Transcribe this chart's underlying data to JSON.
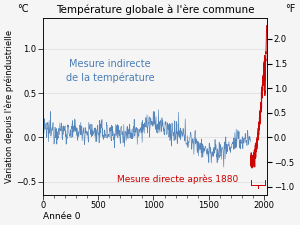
{
  "title": "Température globale à l'ère commune",
  "ylabel_left": "Variation depuis l'ère préindustrielle",
  "ylabel_left_unit": "°C",
  "ylabel_right_unit": "°F",
  "xlabel": "Année 0",
  "xlim": [
    0,
    2030
  ],
  "ylim_c": [
    -0.65,
    1.35
  ],
  "xticks": [
    0,
    500,
    1000,
    1500,
    2000
  ],
  "yticks_c": [
    -0.5,
    0,
    0.5,
    1.0
  ],
  "yticks_f": [
    -1.0,
    -0.5,
    0,
    0.5,
    1.0,
    1.5,
    2.0
  ],
  "indirect_label_line1": "Mesure indirecte",
  "indirect_label_line2": "de la température",
  "direct_label": "Mesure directe après 1880",
  "indirect_color": "#4a7db5",
  "direct_color": "#cc0000",
  "background_color": "#f5f5f5",
  "title_fontsize": 7.5,
  "ylabel_fontsize": 6.0,
  "tick_fontsize": 6.0,
  "unit_fontsize": 7.0,
  "annotation_fontsize": 7.0,
  "direct_label_fontsize": 6.5
}
